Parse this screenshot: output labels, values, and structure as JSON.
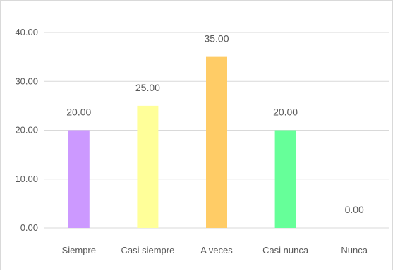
{
  "chart_data": {
    "type": "bar",
    "categories": [
      "Siempre",
      "Casi siempre",
      "A veces",
      "Casi nunca",
      "Nunca"
    ],
    "values": [
      20.0,
      25.0,
      35.0,
      20.0,
      0.0
    ],
    "value_labels": [
      "20.00",
      "25.00",
      "35.00",
      "20.00",
      "0.00"
    ],
    "bar_colors": [
      "#cc99ff",
      "#ffff99",
      "#ffcc66",
      "#66ff99",
      "#a6a6a6"
    ],
    "ylim": [
      0,
      40
    ],
    "yticks": [
      0,
      10,
      20,
      30,
      40
    ],
    "ytick_labels": [
      "0.00",
      "10.00",
      "20.00",
      "30.00",
      "40.00"
    ],
    "grid": true,
    "gridline_color": "#d9d9d9",
    "title": "",
    "xlabel": "",
    "ylabel": ""
  }
}
